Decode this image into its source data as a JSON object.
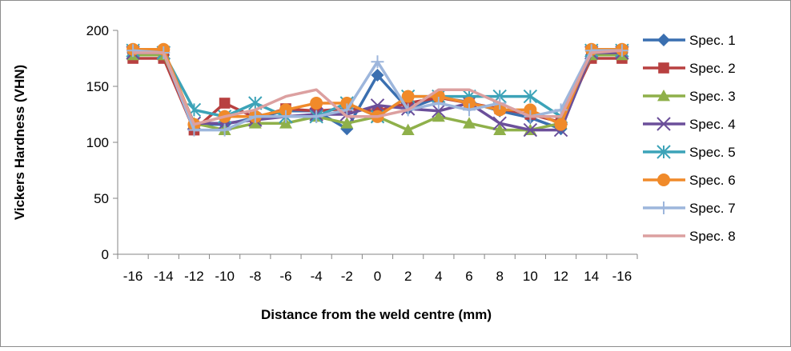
{
  "chart_data": {
    "type": "line",
    "title": "",
    "xlabel": "Distance from the weld centre (mm)",
    "ylabel": "Vickers Hardness (VHN)",
    "ylim": [
      0,
      200
    ],
    "yticks": [
      0,
      50,
      100,
      150,
      200
    ],
    "categories": [
      "-16",
      "-14",
      "-12",
      "-10",
      "-8",
      "-6",
      "-4",
      "-2",
      "0",
      "2",
      "4",
      "6",
      "8",
      "10",
      "12",
      "14",
      "-16"
    ],
    "grid": false,
    "legend_position": "right",
    "series": [
      {
        "name": "Spec. 1",
        "color": "#3a6fb0",
        "marker": "diamond",
        "values": [
          180,
          178,
          116,
          116,
          122,
          128,
          128,
          112,
          160,
          130,
          140,
          136,
          128,
          122,
          112,
          178,
          180
        ]
      },
      {
        "name": "Spec. 2",
        "color": "#b84040",
        "marker": "square",
        "values": [
          175,
          175,
          111,
          135,
          122,
          130,
          128,
          130,
          128,
          135,
          140,
          135,
          130,
          125,
          118,
          175,
          175
        ]
      },
      {
        "name": "Spec. 3",
        "color": "#8fb04a",
        "marker": "triangle",
        "values": [
          178,
          178,
          117,
          111,
          117,
          117,
          123,
          117,
          123,
          111,
          123,
          117,
          111,
          111,
          117,
          178,
          178
        ]
      },
      {
        "name": "Spec. 4",
        "color": "#6b4f9a",
        "marker": "x",
        "values": [
          180,
          180,
          117,
          117,
          120,
          123,
          125,
          125,
          133,
          130,
          128,
          135,
          117,
          111,
          111,
          180,
          180
        ]
      },
      {
        "name": "Spec. 5",
        "color": "#3ca3b8",
        "marker": "star",
        "values": [
          182,
          180,
          129,
          123,
          135,
          123,
          123,
          135,
          123,
          141,
          141,
          141,
          141,
          141,
          123,
          182,
          182
        ]
      },
      {
        "name": "Spec. 6",
        "color": "#f08a2a",
        "marker": "circle",
        "values": [
          183,
          183,
          116,
          123,
          123,
          129,
          135,
          135,
          123,
          141,
          141,
          135,
          129,
          129,
          116,
          183,
          183
        ]
      },
      {
        "name": "Spec. 7",
        "color": "#9db6dc",
        "marker": "plus",
        "values": [
          182,
          180,
          111,
          111,
          123,
          123,
          123,
          129,
          172,
          129,
          135,
          129,
          135,
          123,
          129,
          182,
          182
        ]
      },
      {
        "name": "Spec. 8",
        "color": "#dca0a0",
        "marker": "none",
        "values": [
          180,
          180,
          116,
          123,
          129,
          141,
          147,
          123,
          123,
          129,
          147,
          147,
          135,
          123,
          123,
          180,
          182
        ]
      }
    ]
  }
}
